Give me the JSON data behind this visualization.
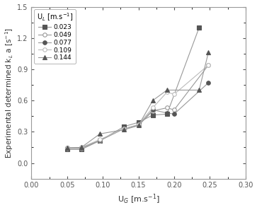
{
  "title": "",
  "xlabel": "U$_G$ [m.s$^{-1}$]",
  "ylabel": "Experimental determined k$_L$ a [s$^{-1}$]",
  "xlim": [
    0.0,
    0.3
  ],
  "ylim": [
    -0.15,
    1.5
  ],
  "xticks": [
    0.0,
    0.05,
    0.1,
    0.15,
    0.2,
    0.25,
    0.3
  ],
  "yticks": [
    0.0,
    0.3,
    0.6,
    0.9,
    1.2,
    1.5
  ],
  "legend_title": "U$_L$ [m.s$^{-1}$]",
  "series": [
    {
      "label": "0.023",
      "marker": "s",
      "fillstyle": "full",
      "linecolor": "#999999",
      "markerfc": "#555555",
      "markerec": "#555555",
      "x": [
        0.05,
        0.07,
        0.096,
        0.13,
        0.15,
        0.17,
        0.19,
        0.235
      ],
      "y": [
        0.13,
        0.13,
        0.215,
        0.35,
        0.39,
        0.46,
        0.47,
        1.3
      ]
    },
    {
      "label": "0.049",
      "marker": "o",
      "fillstyle": "none",
      "linecolor": "#999999",
      "markerfc": "white",
      "markerec": "#999999",
      "x": [
        0.05,
        0.07,
        0.096,
        0.13,
        0.15,
        0.17,
        0.19,
        0.2,
        0.248
      ],
      "y": [
        0.14,
        0.14,
        0.215,
        0.33,
        0.36,
        0.5,
        0.53,
        0.51,
        0.94
      ]
    },
    {
      "label": "0.077",
      "marker": "o",
      "fillstyle": "full",
      "linecolor": "#999999",
      "markerfc": "#555555",
      "markerec": "#555555",
      "x": [
        0.05,
        0.07,
        0.096,
        0.13,
        0.15,
        0.17,
        0.19,
        0.2,
        0.248
      ],
      "y": [
        0.145,
        0.145,
        0.22,
        0.33,
        0.365,
        0.51,
        0.48,
        0.47,
        0.77
      ]
    },
    {
      "label": "0.109",
      "marker": "o",
      "fillstyle": "none",
      "linecolor": "#bbbbbb",
      "markerfc": "white",
      "markerec": "#bbbbbb",
      "x": [
        0.05,
        0.07,
        0.096,
        0.13,
        0.15,
        0.17,
        0.19,
        0.2,
        0.248
      ],
      "y": [
        0.145,
        0.15,
        0.225,
        0.33,
        0.37,
        0.53,
        0.68,
        0.66,
        0.94
      ]
    },
    {
      "label": "0.144",
      "marker": "^",
      "fillstyle": "full",
      "linecolor": "#999999",
      "markerfc": "#555555",
      "markerec": "#555555",
      "x": [
        0.05,
        0.07,
        0.096,
        0.13,
        0.15,
        0.17,
        0.19,
        0.235,
        0.248
      ],
      "y": [
        0.145,
        0.15,
        0.28,
        0.32,
        0.36,
        0.6,
        0.7,
        0.7,
        1.06
      ]
    }
  ],
  "background_color": "#ffffff",
  "figsize": [
    3.63,
    2.97
  ],
  "dpi": 100
}
